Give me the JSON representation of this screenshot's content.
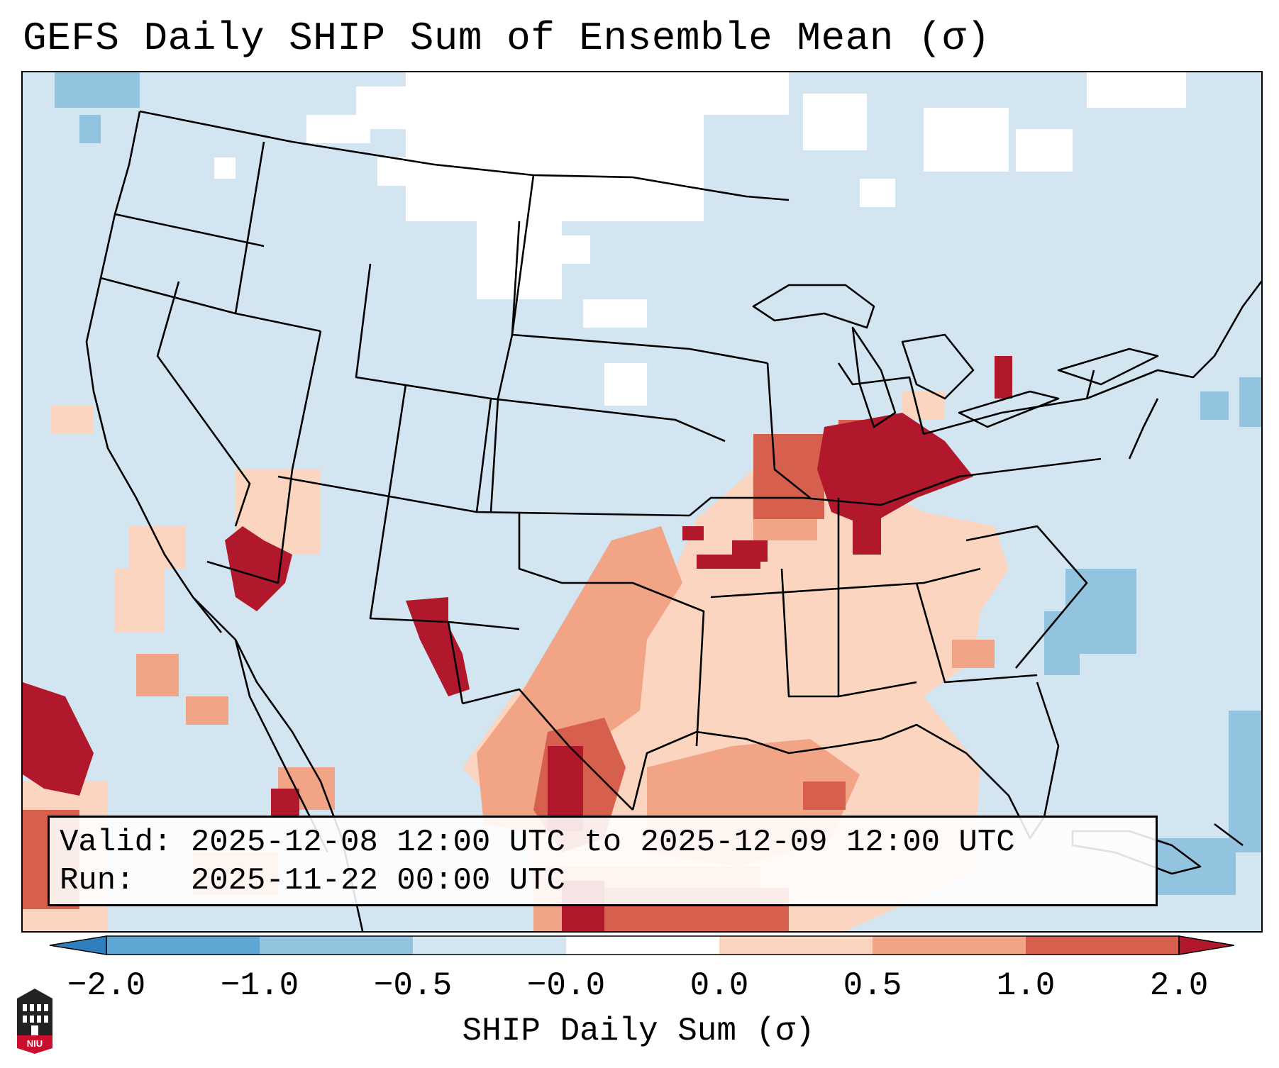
{
  "title": "GEFS Daily SHIP Sum of Ensemble Mean (σ)",
  "info": {
    "valid_label": "Valid:",
    "valid_value": "2025-12-08 12:00 UTC to 2025-12-09 12:00 UTC",
    "run_label": "Run:",
    "run_value": "2025-11-22 00:00 UTC"
  },
  "colorbar": {
    "title": "SHIP Daily Sum (σ)",
    "ticks": [
      "−2.0",
      "−1.0",
      "−0.5",
      "−0.0",
      "0.0",
      "0.5",
      "1.0",
      "2.0"
    ],
    "colors": [
      "#2f7fbf",
      "#5ea6d4",
      "#92c4df",
      "#d3e5f0",
      "#ffffff",
      "#fbd5c0",
      "#f2a486",
      "#d6604d",
      "#b2182b"
    ]
  },
  "logo": {
    "icon": "university-building-icon",
    "text": "NIU"
  }
}
